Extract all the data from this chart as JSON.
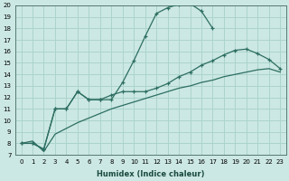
{
  "xlabel": "Humidex (Indice chaleur)",
  "bg_color": "#cce8e4",
  "grid_color": "#aad4cc",
  "line_color": "#2d6e62",
  "xlim": [
    -0.5,
    23.5
  ],
  "ylim": [
    7,
    20
  ],
  "xticks": [
    0,
    1,
    2,
    3,
    4,
    5,
    6,
    7,
    8,
    9,
    10,
    11,
    12,
    13,
    14,
    15,
    16,
    17,
    18,
    19,
    20,
    21,
    22,
    23
  ],
  "yticks": [
    7,
    8,
    9,
    10,
    11,
    12,
    13,
    14,
    15,
    16,
    17,
    18,
    19,
    20
  ],
  "line1_x": [
    0,
    1,
    2,
    3,
    4,
    5,
    6,
    7,
    8,
    9,
    10,
    11,
    12,
    13,
    14,
    15,
    16,
    17
  ],
  "line1_y": [
    8.0,
    8.0,
    7.5,
    11.0,
    11.0,
    12.5,
    11.8,
    11.8,
    11.8,
    13.3,
    15.2,
    17.3,
    19.3,
    19.8,
    20.1,
    20.15,
    19.5,
    18.0
  ],
  "line2_x": [
    0,
    1,
    2,
    3,
    4,
    5,
    6,
    7,
    8,
    9,
    10,
    11,
    12,
    13,
    14,
    15,
    16,
    17,
    18,
    19,
    20,
    21,
    22,
    23
  ],
  "line2_y": [
    8.0,
    8.0,
    7.5,
    11.0,
    11.0,
    12.5,
    11.8,
    11.8,
    12.2,
    12.5,
    12.5,
    12.5,
    12.8,
    13.2,
    13.8,
    14.2,
    14.8,
    15.2,
    15.7,
    16.1,
    16.2,
    15.8,
    15.3,
    14.5
  ],
  "line3_x": [
    0,
    1,
    2,
    3,
    4,
    5,
    6,
    7,
    8,
    9,
    10,
    11,
    12,
    13,
    14,
    15,
    16,
    17,
    18,
    19,
    20,
    21,
    22,
    23
  ],
  "line3_y": [
    8.0,
    8.2,
    7.3,
    8.8,
    9.3,
    9.8,
    10.2,
    10.6,
    11.0,
    11.3,
    11.6,
    11.9,
    12.2,
    12.5,
    12.8,
    13.0,
    13.3,
    13.5,
    13.8,
    14.0,
    14.2,
    14.4,
    14.5,
    14.2
  ]
}
